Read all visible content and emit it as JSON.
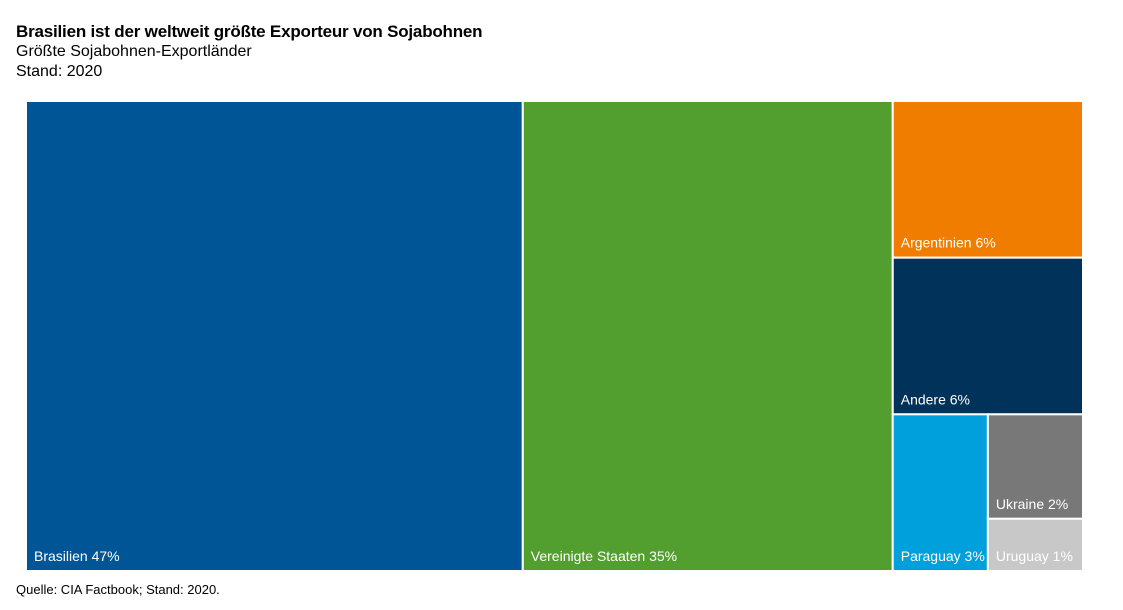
{
  "title": "Brasilien ist der weltweit größte Exporteur von Sojabohnen",
  "subtitle": "Größte Sojabohnen-Exportländer",
  "subtitle2": "Stand: 2020",
  "source": "Quelle: CIA Factbook; Stand: 2020.",
  "chart_data": {
    "type": "treemap",
    "unit": "%",
    "items": [
      {
        "name": "Brasilien",
        "value": 47,
        "label": "Brasilien 47%",
        "color": "#005596"
      },
      {
        "name": "Vereinigte Staaten",
        "value": 35,
        "label": "Vereinigte Staaten 35%",
        "color": "#529E2E"
      },
      {
        "name": "Argentinien",
        "value": 6,
        "label": "Argentinien 6%",
        "color": "#F07D00"
      },
      {
        "name": "Andere",
        "value": 6,
        "label": "Andere 6%",
        "color": "#00325A"
      },
      {
        "name": "Paraguay",
        "value": 3,
        "label": "Paraguay 3%",
        "color": "#00A0DC"
      },
      {
        "name": "Ukraine",
        "value": 2,
        "label": "Ukraine 2%",
        "color": "#787878"
      },
      {
        "name": "Uruguay",
        "value": 1,
        "label": "Uruguay 1%",
        "color": "#C8C8C8"
      }
    ]
  }
}
